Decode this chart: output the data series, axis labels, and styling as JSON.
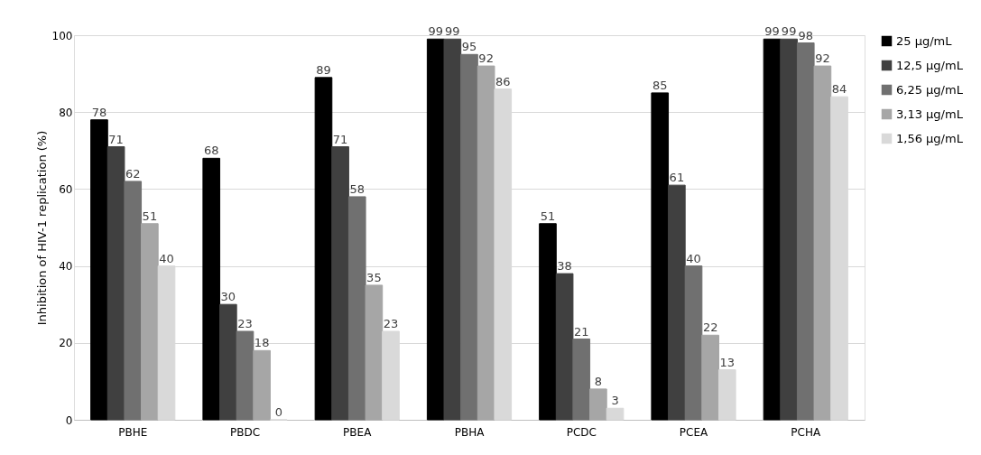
{
  "chart_data": {
    "type": "bar",
    "ylabel": "Inhibition of HIV-1 replication (%)",
    "categories": [
      "PBHE",
      "PBDC",
      "PBEA",
      "PBHA",
      "PCDC",
      "PCEA",
      "PCHA"
    ],
    "series": [
      {
        "name": "25 µg/mL",
        "color": "#000000",
        "values": [
          78,
          68,
          89,
          99,
          51,
          85,
          99
        ]
      },
      {
        "name": "12,5 µg/mL",
        "color": "#404040",
        "values": [
          71,
          30,
          71,
          99,
          38,
          61,
          99
        ]
      },
      {
        "name": "6,25 µg/mL",
        "color": "#707070",
        "values": [
          62,
          23,
          58,
          95,
          21,
          40,
          98
        ]
      },
      {
        "name": "3,13 µg/mL",
        "color": "#a6a6a6",
        "values": [
          51,
          18,
          35,
          92,
          8,
          22,
          92
        ]
      },
      {
        "name": "1,56 µg/mL",
        "color": "#d9d9d9",
        "values": [
          40,
          0,
          23,
          86,
          3,
          13,
          84
        ]
      }
    ],
    "ylim": [
      0,
      100
    ],
    "yticks": [
      0,
      20,
      40,
      60,
      80,
      100
    ],
    "grid": "y",
    "legend": "right",
    "data_labels": true
  }
}
